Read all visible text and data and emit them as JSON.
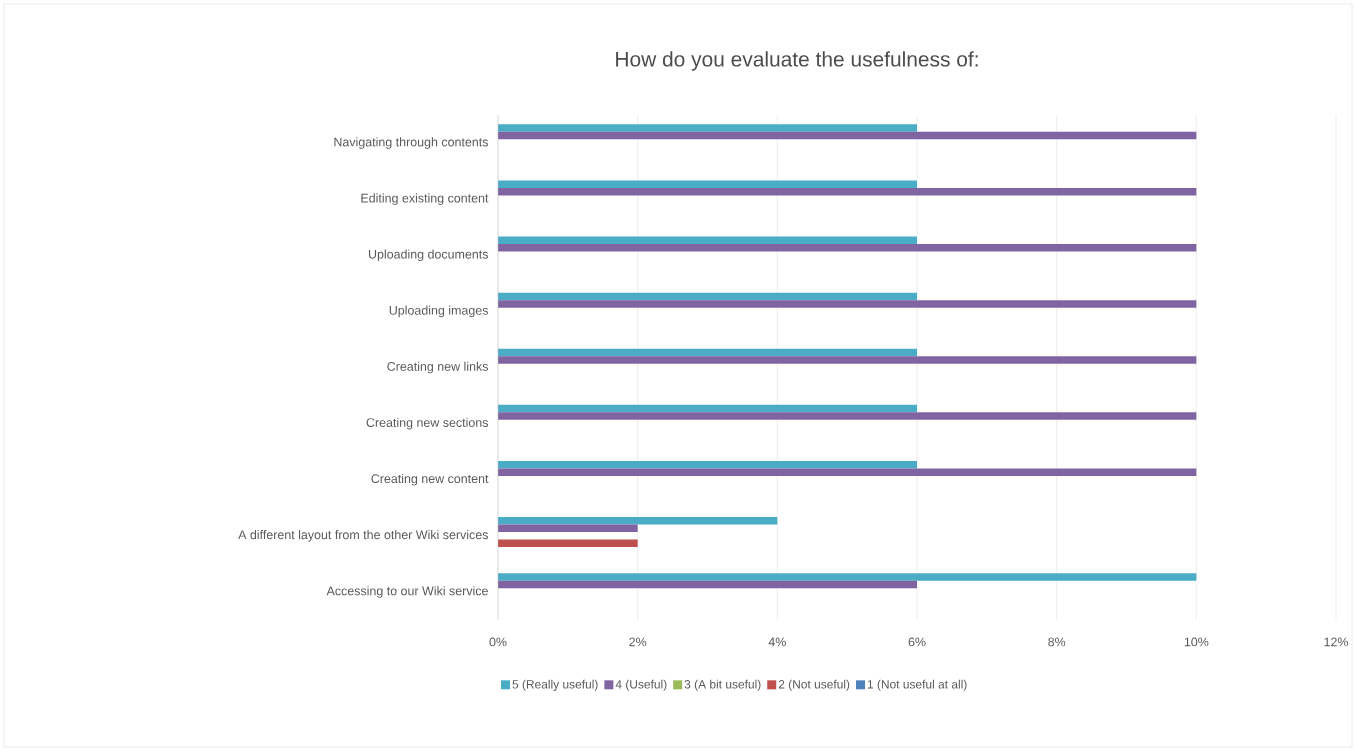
{
  "chart_data": {
    "type": "bar",
    "orientation": "horizontal",
    "title": "How do you evaluate the usefulness of:",
    "categories": [
      "Navigating through contents",
      "Editing existing content",
      "Uploading documents",
      "Uploading images",
      "Creating new links",
      "Creating new sections",
      "Creating new content",
      "A different layout from the other Wiki services",
      "Accessing to our Wiki service"
    ],
    "series": [
      {
        "name": "5 (Really useful)",
        "color": "#4bacc6",
        "values": [
          6,
          6,
          6,
          6,
          6,
          6,
          6,
          4,
          10
        ]
      },
      {
        "name": "4 (Useful)",
        "color": "#8064a2",
        "values": [
          10,
          10,
          10,
          10,
          10,
          10,
          10,
          2,
          6
        ]
      },
      {
        "name": "3 (A bit useful)",
        "color": "#9bbb59",
        "values": [
          0,
          0,
          0,
          0,
          0,
          0,
          0,
          0,
          0
        ]
      },
      {
        "name": "2 (Not useful)",
        "color": "#c0504d",
        "values": [
          0,
          0,
          0,
          0,
          0,
          0,
          0,
          2,
          0
        ]
      },
      {
        "name": "1 (Not useful at all)",
        "color": "#4f81bd",
        "values": [
          0,
          0,
          0,
          0,
          0,
          0,
          0,
          0,
          0
        ]
      }
    ],
    "xlim": [
      0,
      12
    ],
    "xticks": [
      {
        "value": 0,
        "label": "0%"
      },
      {
        "value": 2,
        "label": "2%"
      },
      {
        "value": 4,
        "label": "4%"
      },
      {
        "value": 6,
        "label": "6%"
      },
      {
        "value": 8,
        "label": "8%"
      },
      {
        "value": 10,
        "label": "10%"
      },
      {
        "value": 12,
        "label": "12%"
      }
    ],
    "grid": "x",
    "legend": "bottom"
  }
}
